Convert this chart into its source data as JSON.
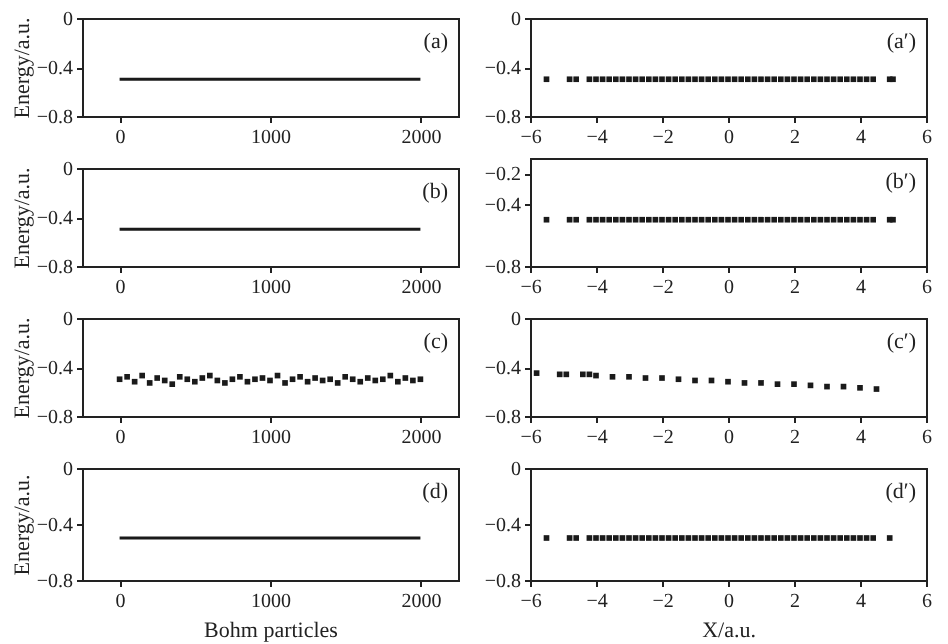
{
  "chart_data": [
    {
      "type": "line",
      "ylabel": "Energy/a.u.",
      "annotations": [
        "(a)"
      ],
      "xlim": [
        -250,
        2250
      ],
      "xticks": [
        0,
        1000,
        2000
      ],
      "ylim": [
        -0.8,
        0
      ],
      "yticks": [
        {
          "value": -0.8,
          "label": "−0.8"
        },
        {
          "value": -0.4,
          "label": "−0.4"
        },
        {
          "value": 0,
          "label": "0"
        }
      ],
      "series": [
        {
          "color": "#1a1a1a",
          "x": [
            0,
            2000
          ],
          "values": [
            -0.5,
            -0.5
          ]
        }
      ]
    },
    {
      "type": "scatter",
      "marker": "square",
      "annotations": [
        "(a′)"
      ],
      "xlim": [
        -6,
        6
      ],
      "xticks": [
        {
          "value": -6,
          "label": "−6"
        },
        {
          "value": -4,
          "label": "−4"
        },
        {
          "value": -2,
          "label": "−2"
        },
        0,
        2,
        4,
        6
      ],
      "ylim": [
        -0.8,
        0
      ],
      "yticks": [
        {
          "value": -0.8,
          "label": "−0.8"
        },
        {
          "value": -0.4,
          "label": "−0.4"
        },
        {
          "value": 0,
          "label": "0"
        }
      ],
      "series": [
        {
          "color": "#1a1a1a",
          "x": [
            -5.5,
            -4.8,
            -4.6,
            -4.2,
            -4.0,
            -3.8,
            -3.6,
            -3.4,
            -3.2,
            -3.0,
            -2.8,
            -2.6,
            -2.4,
            -2.2,
            -2.0,
            -1.8,
            -1.6,
            -1.4,
            -1.2,
            -1.0,
            -0.8,
            -0.6,
            -0.4,
            -0.2,
            0,
            0.2,
            0.4,
            0.6,
            0.8,
            1.0,
            1.2,
            1.4,
            1.6,
            1.8,
            2.0,
            2.2,
            2.4,
            2.6,
            2.8,
            3.0,
            3.2,
            3.4,
            3.6,
            3.8,
            4.0,
            4.2,
            4.4,
            4.9,
            5.0
          ],
          "values": [
            -0.5,
            -0.5,
            -0.5,
            -0.5,
            -0.5,
            -0.5,
            -0.5,
            -0.5,
            -0.5,
            -0.5,
            -0.5,
            -0.5,
            -0.5,
            -0.5,
            -0.5,
            -0.5,
            -0.5,
            -0.5,
            -0.5,
            -0.5,
            -0.5,
            -0.5,
            -0.5,
            -0.5,
            -0.5,
            -0.5,
            -0.5,
            -0.5,
            -0.5,
            -0.5,
            -0.5,
            -0.5,
            -0.5,
            -0.5,
            -0.5,
            -0.5,
            -0.5,
            -0.5,
            -0.5,
            -0.5,
            -0.5,
            -0.5,
            -0.5,
            -0.5,
            -0.5,
            -0.5,
            -0.5,
            -0.5,
            -0.5
          ]
        }
      ]
    },
    {
      "type": "line",
      "ylabel": "Energy/a.u.",
      "annotations": [
        "(b)"
      ],
      "xlim": [
        -250,
        2250
      ],
      "xticks": [
        0,
        1000,
        2000
      ],
      "ylim": [
        -0.8,
        0
      ],
      "yticks": [
        {
          "value": -0.8,
          "label": "−0.8"
        },
        {
          "value": -0.4,
          "label": "−0.4"
        },
        {
          "value": 0,
          "label": "0"
        }
      ],
      "series": [
        {
          "color": "#1a1a1a",
          "x": [
            0,
            2000
          ],
          "values": [
            -0.5,
            -0.5
          ]
        }
      ]
    },
    {
      "type": "scatter",
      "marker": "square",
      "annotations": [
        "(b′)"
      ],
      "xlim": [
        -6,
        6
      ],
      "xticks": [
        {
          "value": -6,
          "label": "−6"
        },
        {
          "value": -4,
          "label": "−4"
        },
        {
          "value": -2,
          "label": "−2"
        },
        0,
        2,
        4,
        6
      ],
      "ylim": [
        -0.8,
        -0.1
      ],
      "yticks": [
        {
          "value": -0.8,
          "label": "−0.8"
        },
        {
          "value": -0.4,
          "label": "−0.4"
        },
        {
          "value": -0.2,
          "label": "−0.2"
        }
      ],
      "series": [
        {
          "color": "#1a1a1a",
          "x": [
            -5.5,
            -4.8,
            -4.6,
            -4.2,
            -4.0,
            -3.8,
            -3.6,
            -3.4,
            -3.2,
            -3.0,
            -2.8,
            -2.6,
            -2.4,
            -2.2,
            -2.0,
            -1.8,
            -1.6,
            -1.4,
            -1.2,
            -1.0,
            -0.8,
            -0.6,
            -0.4,
            -0.2,
            0,
            0.2,
            0.4,
            0.6,
            0.8,
            1.0,
            1.2,
            1.4,
            1.6,
            1.8,
            2.0,
            2.2,
            2.4,
            2.6,
            2.8,
            3.0,
            3.2,
            3.4,
            3.6,
            3.8,
            4.0,
            4.2,
            4.4,
            4.9,
            5.0
          ],
          "values": [
            -0.5,
            -0.5,
            -0.5,
            -0.5,
            -0.5,
            -0.5,
            -0.5,
            -0.5,
            -0.5,
            -0.5,
            -0.5,
            -0.5,
            -0.5,
            -0.5,
            -0.5,
            -0.5,
            -0.5,
            -0.5,
            -0.5,
            -0.5,
            -0.5,
            -0.5,
            -0.5,
            -0.5,
            -0.5,
            -0.5,
            -0.5,
            -0.5,
            -0.5,
            -0.5,
            -0.5,
            -0.5,
            -0.5,
            -0.5,
            -0.5,
            -0.5,
            -0.5,
            -0.5,
            -0.5,
            -0.5,
            -0.5,
            -0.5,
            -0.5,
            -0.5,
            -0.5,
            -0.5,
            -0.5,
            -0.5,
            -0.5
          ]
        }
      ]
    },
    {
      "type": "scatter",
      "marker": "square",
      "ylabel": "Energy/a.u.",
      "annotations": [
        "(c)"
      ],
      "xlim": [
        -250,
        2250
      ],
      "xticks": [
        0,
        1000,
        2000
      ],
      "ylim": [
        -0.8,
        0
      ],
      "yticks": [
        {
          "value": -0.8,
          "label": "−0.8"
        },
        {
          "value": -0.4,
          "label": "−0.4"
        },
        {
          "value": 0,
          "label": "0"
        }
      ],
      "series": [
        {
          "color": "#1a1a1a",
          "x": [
            0,
            50,
            100,
            150,
            200,
            250,
            300,
            350,
            400,
            450,
            500,
            550,
            600,
            650,
            700,
            750,
            800,
            850,
            900,
            950,
            1000,
            1050,
            1100,
            1150,
            1200,
            1250,
            1300,
            1350,
            1400,
            1450,
            1500,
            1550,
            1600,
            1650,
            1700,
            1750,
            1800,
            1850,
            1900,
            1950,
            2000
          ],
          "values": [
            -0.5,
            -0.48,
            -0.52,
            -0.47,
            -0.53,
            -0.49,
            -0.51,
            -0.54,
            -0.48,
            -0.5,
            -0.52,
            -0.49,
            -0.47,
            -0.51,
            -0.53,
            -0.5,
            -0.48,
            -0.52,
            -0.5,
            -0.49,
            -0.51,
            -0.47,
            -0.53,
            -0.5,
            -0.48,
            -0.52,
            -0.49,
            -0.51,
            -0.5,
            -0.53,
            -0.48,
            -0.5,
            -0.52,
            -0.49,
            -0.51,
            -0.5,
            -0.47,
            -0.52,
            -0.49,
            -0.51,
            -0.5
          ]
        }
      ]
    },
    {
      "type": "scatter",
      "marker": "square",
      "annotations": [
        "(c′)"
      ],
      "xlim": [
        -6,
        6
      ],
      "xticks": [
        {
          "value": -6,
          "label": "−6"
        },
        {
          "value": -4,
          "label": "−4"
        },
        {
          "value": -2,
          "label": "−2"
        },
        0,
        2,
        4,
        6
      ],
      "ylim": [
        -0.8,
        0
      ],
      "yticks": [
        {
          "value": -0.8,
          "label": "−0.8"
        },
        {
          "value": -0.4,
          "label": "−0.4"
        },
        {
          "value": 0,
          "label": "0"
        }
      ],
      "series": [
        {
          "color": "#1a1a1a",
          "x": [
            -5.8,
            -5.1,
            -4.9,
            -4.4,
            -4.2,
            -4.0,
            -3.5,
            -3.0,
            -2.5,
            -2.0,
            -1.5,
            -1.0,
            -0.5,
            0,
            0.5,
            1.0,
            1.5,
            2.0,
            2.5,
            3.0,
            3.5,
            4.0,
            4.5
          ],
          "values": [
            -0.45,
            -0.46,
            -0.46,
            -0.46,
            -0.46,
            -0.47,
            -0.48,
            -0.48,
            -0.49,
            -0.49,
            -0.5,
            -0.51,
            -0.51,
            -0.52,
            -0.53,
            -0.53,
            -0.54,
            -0.54,
            -0.55,
            -0.56,
            -0.56,
            -0.57,
            -0.58
          ]
        }
      ]
    },
    {
      "type": "line",
      "ylabel": "Energy/a.u.",
      "xlabel": "Bohm particles",
      "annotations": [
        "(d)"
      ],
      "xlim": [
        -250,
        2250
      ],
      "xticks": [
        0,
        1000,
        2000
      ],
      "ylim": [
        -0.8,
        0
      ],
      "yticks": [
        {
          "value": -0.8,
          "label": "−0.8"
        },
        {
          "value": -0.4,
          "label": "−0.4"
        },
        {
          "value": 0,
          "label": "0"
        }
      ],
      "series": [
        {
          "color": "#1a1a1a",
          "x": [
            0,
            2000
          ],
          "values": [
            -0.5,
            -0.5
          ]
        }
      ]
    },
    {
      "type": "scatter",
      "marker": "square",
      "xlabel": "X/a.u.",
      "annotations": [
        "(d′)"
      ],
      "xlim": [
        -6,
        6
      ],
      "xticks": [
        {
          "value": -6,
          "label": "−6"
        },
        {
          "value": -4,
          "label": "−4"
        },
        {
          "value": -2,
          "label": "−2"
        },
        0,
        2,
        4,
        6
      ],
      "ylim": [
        -0.8,
        0
      ],
      "yticks": [
        {
          "value": -0.8,
          "label": "−0.8"
        },
        {
          "value": -0.4,
          "label": "−0.4"
        },
        {
          "value": 0,
          "label": "0"
        }
      ],
      "series": [
        {
          "color": "#1a1a1a",
          "x": [
            -5.5,
            -4.8,
            -4.6,
            -4.2,
            -4.0,
            -3.8,
            -3.6,
            -3.4,
            -3.2,
            -3.0,
            -2.8,
            -2.6,
            -2.4,
            -2.2,
            -2.0,
            -1.8,
            -1.6,
            -1.4,
            -1.2,
            -1.0,
            -0.8,
            -0.6,
            -0.4,
            -0.2,
            0,
            0.2,
            0.4,
            0.6,
            0.8,
            1.0,
            1.2,
            1.4,
            1.6,
            1.8,
            2.0,
            2.2,
            2.4,
            2.6,
            2.8,
            3.0,
            3.2,
            3.4,
            3.6,
            3.8,
            4.0,
            4.2,
            4.4,
            4.9
          ],
          "values": [
            -0.5,
            -0.5,
            -0.5,
            -0.5,
            -0.5,
            -0.5,
            -0.5,
            -0.5,
            -0.5,
            -0.5,
            -0.5,
            -0.5,
            -0.5,
            -0.5,
            -0.5,
            -0.5,
            -0.5,
            -0.5,
            -0.5,
            -0.5,
            -0.5,
            -0.5,
            -0.5,
            -0.5,
            -0.5,
            -0.5,
            -0.5,
            -0.5,
            -0.5,
            -0.5,
            -0.5,
            -0.5,
            -0.5,
            -0.5,
            -0.5,
            -0.5,
            -0.5,
            -0.5,
            -0.5,
            -0.5,
            -0.5,
            -0.5,
            -0.5,
            -0.5,
            -0.5,
            -0.5,
            -0.5,
            -0.5
          ]
        }
      ]
    }
  ]
}
